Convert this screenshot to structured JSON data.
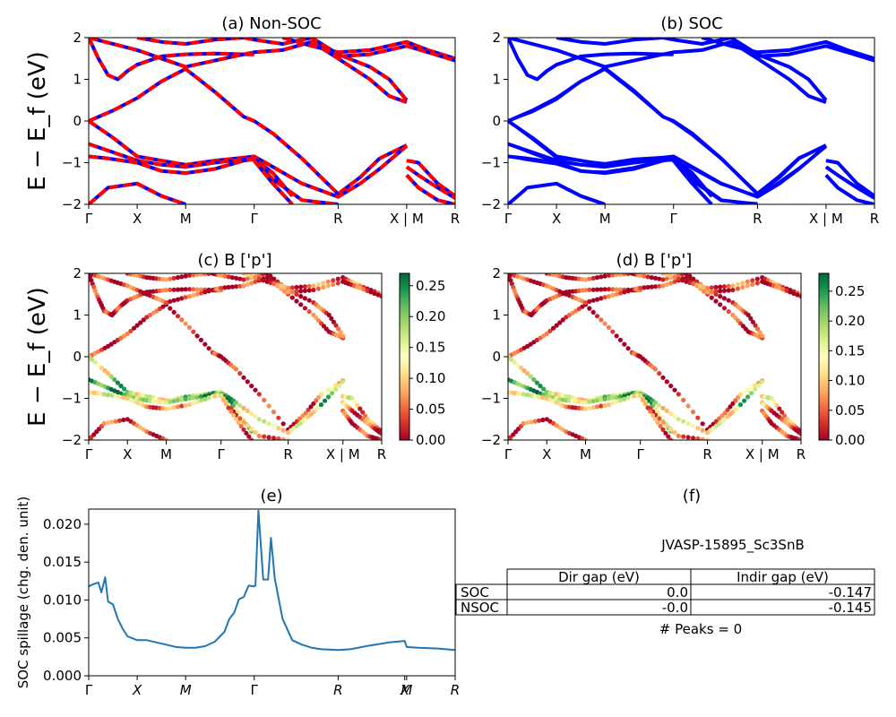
{
  "figure": {
    "panel_titles": [
      "(a) Non-SOC",
      "(b) SOC",
      "(c)  B ['p']",
      "(d) B ['p']",
      "(e)",
      "(f)"
    ],
    "energy_ylabel": "E − E_f (eV)",
    "spillage_ylabel": "SOC spillage (chg. den. unit)"
  },
  "colors": {
    "nonsoc_solid": "#0000ff",
    "nonsoc_dash": "#ff0000",
    "soc": "#0000ff",
    "spillage": "#1f77b4",
    "colormap": "RdYlGn"
  },
  "chart_data": [
    {
      "id": "a",
      "type": "line",
      "title": "(a) Non-SOC",
      "ylabel": "E − E_f (eV)",
      "ylim": [
        -2,
        2
      ],
      "yticks": [
        -2,
        -1,
        0,
        1,
        2
      ],
      "xticks": [
        {
          "x": 0,
          "label": "Γ"
        },
        {
          "x": 0.5,
          "label": "X"
        },
        {
          "x": 1.0,
          "label": "M"
        },
        {
          "x": 1.707,
          "label": "Γ"
        },
        {
          "x": 2.573,
          "label": "R"
        },
        {
          "x": 3.28,
          "label": "X | M"
        },
        {
          "x": 3.78,
          "label": "R"
        }
      ],
      "xlim": [
        0,
        3.78
      ],
      "style": "blue solid overlaid by red dashed",
      "series": [
        {
          "x": [
            0,
            0.25,
            0.5,
            0.75,
            1.0,
            1.3,
            1.6,
            1.707,
            1.9,
            2.2,
            2.573,
            2.8,
            3.0,
            3.28
          ],
          "y": [
            0.0,
            0.25,
            0.55,
            0.95,
            1.25,
            0.7,
            0.1,
            0.0,
            -0.3,
            -0.9,
            -1.75,
            -1.35,
            -0.9,
            -0.58
          ]
        },
        {
          "x": [
            0,
            0.25,
            0.5,
            0.75,
            1.0,
            1.3,
            1.6,
            1.707,
            1.9,
            2.2,
            2.573,
            2.8,
            3.0,
            3.28
          ],
          "y": [
            0.0,
            -0.4,
            -0.85,
            -0.95,
            -1.05,
            -0.95,
            -0.88,
            -0.85,
            -1.1,
            -1.5,
            -1.82,
            -1.5,
            -1.15,
            -0.6
          ]
        },
        {
          "x": [
            0,
            0.25,
            0.5,
            0.75,
            1.0,
            1.3,
            1.6,
            1.707,
            1.9,
            2.1
          ],
          "y": [
            -0.55,
            -0.75,
            -0.95,
            -1.05,
            -1.1,
            -1.0,
            -0.92,
            -0.9,
            -1.25,
            -1.8
          ]
        },
        {
          "x": [
            0,
            0.2,
            0.5,
            0.75,
            1.0,
            1.3,
            1.6,
            1.707,
            1.9,
            2.2,
            2.573
          ],
          "y": [
            -0.85,
            -0.9,
            -1.0,
            -1.2,
            -1.25,
            -1.15,
            -0.95,
            -0.92,
            -1.4,
            -1.9,
            -2.0
          ]
        },
        {
          "x": [
            0,
            0.1,
            0.2,
            0.3,
            0.4,
            0.5,
            0.75,
            1.0,
            1.3,
            1.6,
            1.707
          ],
          "y": [
            2.0,
            1.5,
            1.1,
            1.0,
            1.2,
            1.35,
            1.55,
            1.6,
            1.62,
            1.6,
            1.6
          ]
        },
        {
          "x": [
            0,
            0.25,
            0.5,
            0.75,
            1.0,
            1.3,
            1.6,
            1.707,
            2.0,
            2.3,
            2.573,
            2.9,
            3.1,
            3.28
          ],
          "y": [
            2.0,
            1.85,
            1.7,
            1.5,
            1.3,
            1.45,
            1.6,
            1.65,
            1.7,
            1.9,
            1.5,
            1.0,
            0.6,
            0.45
          ]
        },
        {
          "x": [
            0.5,
            0.75,
            1.0,
            1.3,
            1.6,
            1.707,
            2.0,
            2.3,
            2.573,
            2.9,
            3.1,
            3.28
          ],
          "y": [
            2.0,
            1.9,
            1.85,
            1.95,
            2.0,
            1.95,
            1.85,
            2.0,
            1.6,
            1.3,
            1.0,
            0.5
          ]
        },
        {
          "x": [
            2.0,
            2.3,
            2.573,
            2.9,
            3.28,
            3.5,
            3.78
          ],
          "y": [
            2.0,
            1.8,
            1.65,
            1.7,
            1.9,
            1.7,
            1.5
          ]
        },
        {
          "x": [
            2.573,
            2.9,
            3.28,
            3.5,
            3.78
          ],
          "y": [
            1.55,
            1.6,
            1.8,
            1.65,
            1.45
          ]
        },
        {
          "x": [
            0,
            0.2,
            0.5,
            0.75,
            1.0
          ],
          "y": [
            -2.0,
            -1.6,
            -1.5,
            -1.8,
            -2.0
          ]
        },
        {
          "x": [
            1.707,
            1.9,
            2.1
          ],
          "y": [
            -0.95,
            -1.5,
            -2.0
          ]
        },
        {
          "x": [
            3.28,
            3.4,
            3.6,
            3.78
          ],
          "y": [
            -0.95,
            -1.0,
            -1.5,
            -1.8
          ]
        },
        {
          "x": [
            3.28,
            3.4,
            3.6,
            3.78
          ],
          "y": [
            -1.1,
            -1.3,
            -1.6,
            -1.85
          ]
        },
        {
          "x": [
            3.28,
            3.4,
            3.6,
            3.78
          ],
          "y": [
            -1.3,
            -1.6,
            -1.9,
            -2.0
          ]
        }
      ]
    },
    {
      "id": "b",
      "type": "line",
      "title": "(b) SOC",
      "ylim": [
        -2,
        2
      ],
      "yticks": [
        -2,
        -1,
        0,
        1,
        2
      ],
      "xticks": [
        {
          "x": 0,
          "label": "Γ"
        },
        {
          "x": 0.5,
          "label": "X"
        },
        {
          "x": 1.0,
          "label": "M"
        },
        {
          "x": 1.707,
          "label": "Γ"
        },
        {
          "x": 2.573,
          "label": "R"
        },
        {
          "x": 3.28,
          "label": "X | M"
        },
        {
          "x": 3.78,
          "label": "R"
        }
      ],
      "xlim": [
        0,
        3.78
      ],
      "style": "blue solid",
      "series_ref": "same bands as panel (a)"
    },
    {
      "id": "c",
      "type": "scatter",
      "title": "(c)  B ['p']",
      "ylabel": "E − E_f (eV)",
      "ylim": [
        -2,
        2
      ],
      "yticks": [
        -2,
        -1,
        0,
        1,
        2
      ],
      "xticks": [
        {
          "x": 0,
          "label": "Γ"
        },
        {
          "x": 0.5,
          "label": "X"
        },
        {
          "x": 1.0,
          "label": "M"
        },
        {
          "x": 1.707,
          "label": "Γ"
        },
        {
          "x": 2.573,
          "label": "R"
        },
        {
          "x": 3.28,
          "label": "X | M"
        },
        {
          "x": 3.78,
          "label": "R"
        }
      ],
      "xlim": [
        0,
        3.78
      ],
      "colorbar": {
        "min": 0.0,
        "max": 0.27,
        "ticks": [
          0.0,
          0.05,
          0.1,
          0.15,
          0.2,
          0.25
        ],
        "tick_labels": [
          "0.00",
          "0.05",
          "0.10",
          "0.15",
          "0.20",
          "0.25"
        ],
        "colormap": "RdYlGn"
      },
      "band_weights": [
        0.02,
        0.13,
        0.16,
        0.06,
        0.02,
        0.03,
        0.03,
        0.05,
        0.03,
        0.04,
        0.05,
        0.06,
        0.04,
        0.03
      ]
    },
    {
      "id": "d",
      "type": "scatter",
      "title": "(d) B ['p']",
      "ylim": [
        -2,
        2
      ],
      "yticks": [
        -2,
        -1,
        0,
        1,
        2
      ],
      "xticks": [
        {
          "x": 0,
          "label": "Γ"
        },
        {
          "x": 0.5,
          "label": "X"
        },
        {
          "x": 1.0,
          "label": "M"
        },
        {
          "x": 1.707,
          "label": "Γ"
        },
        {
          "x": 2.573,
          "label": "R"
        },
        {
          "x": 3.28,
          "label": "X | M"
        },
        {
          "x": 3.78,
          "label": "R"
        }
      ],
      "xlim": [
        0,
        3.78
      ],
      "colorbar": {
        "min": 0.0,
        "max": 0.28,
        "ticks": [
          0.0,
          0.05,
          0.1,
          0.15,
          0.2,
          0.25
        ],
        "tick_labels": [
          "0.00",
          "0.05",
          "0.10",
          "0.15",
          "0.20",
          "0.25"
        ],
        "colormap": "RdYlGn"
      },
      "band_weights": [
        0.02,
        0.13,
        0.16,
        0.06,
        0.02,
        0.03,
        0.03,
        0.05,
        0.03,
        0.04,
        0.05,
        0.06,
        0.04,
        0.03
      ]
    },
    {
      "id": "e",
      "type": "line",
      "title": "(e)",
      "ylabel": "SOC spillage (chg. den. unit)",
      "ylim": [
        0,
        0.022
      ],
      "yticks": [
        0.0,
        0.005,
        0.01,
        0.015,
        0.02
      ],
      "ytick_labels": [
        "0.000",
        "0.005",
        "0.010",
        "0.015",
        "0.020"
      ],
      "xlim": [
        0,
        3.78
      ],
      "xticks": [
        {
          "x": 0,
          "label": "Γ"
        },
        {
          "x": 0.5,
          "label": "X"
        },
        {
          "x": 1.0,
          "label": "M"
        },
        {
          "x": 1.707,
          "label": "Γ"
        },
        {
          "x": 2.573,
          "label": "R"
        },
        {
          "x": 3.26,
          "label": "X"
        },
        {
          "x": 3.28,
          "label": "M"
        },
        {
          "x": 3.78,
          "label": "R"
        }
      ],
      "x": [
        0,
        0.05,
        0.1,
        0.13,
        0.17,
        0.2,
        0.25,
        0.3,
        0.35,
        0.4,
        0.5,
        0.6,
        0.7,
        0.8,
        0.9,
        1.0,
        1.1,
        1.2,
        1.3,
        1.4,
        1.45,
        1.5,
        1.55,
        1.6,
        1.65,
        1.7,
        1.72,
        1.75,
        1.8,
        1.85,
        1.88,
        1.92,
        1.95,
        2.0,
        2.1,
        2.2,
        2.3,
        2.4,
        2.573,
        2.7,
        2.9,
        3.1,
        3.26,
        3.28,
        3.4,
        3.6,
        3.78
      ],
      "y": [
        0.0118,
        0.0121,
        0.0123,
        0.011,
        0.013,
        0.0098,
        0.0094,
        0.0075,
        0.0062,
        0.0052,
        0.0047,
        0.0047,
        0.0044,
        0.0041,
        0.0038,
        0.0037,
        0.0037,
        0.0039,
        0.0045,
        0.0058,
        0.0075,
        0.0083,
        0.0101,
        0.0104,
        0.0119,
        0.0118,
        0.0119,
        0.0218,
        0.0127,
        0.0127,
        0.0182,
        0.0128,
        0.0108,
        0.0075,
        0.0047,
        0.0041,
        0.0037,
        0.0035,
        0.0034,
        0.0035,
        0.004,
        0.0044,
        0.0046,
        0.0038,
        0.0037,
        0.0036,
        0.0034
      ]
    },
    {
      "id": "f",
      "type": "table",
      "title": "(f)",
      "label": "JVASP-15895_Sc3SnB",
      "columns": [
        "Dir gap (eV)",
        "Indir gap (eV)"
      ],
      "rows": [
        {
          "name": "SOC",
          "values": [
            "0.0",
            "-0.147"
          ]
        },
        {
          "name": "NSOC",
          "values": [
            "-0.0",
            "-0.145"
          ]
        }
      ],
      "footer": "# Peaks = 0"
    }
  ]
}
